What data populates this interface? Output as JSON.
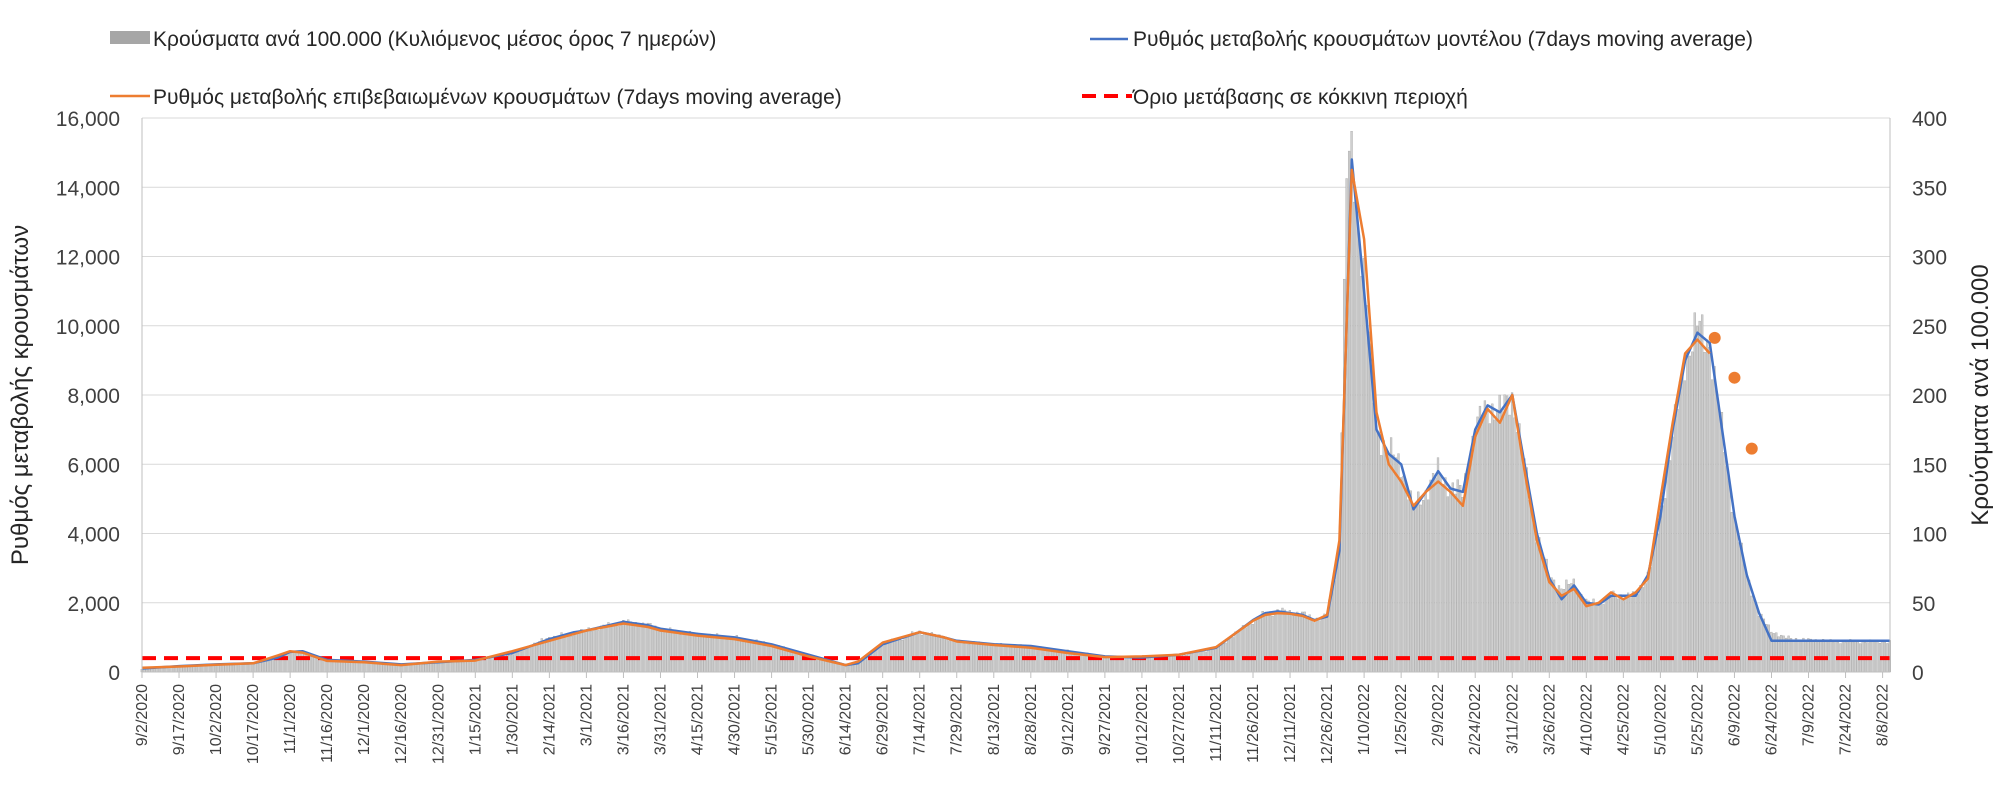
{
  "chart_data": {
    "type": "bar+line",
    "legend": {
      "bars": "Κρούσματα ανά 100.000  (Κυλιόμενος μέσος όρος 7 ημερών)",
      "model": "Ρυθμός μεταβολής κρουσμάτων μοντέλου (7days moving average)",
      "confirmed": "Ρυθμός μεταβολής επιβεβαιωμένων κρουσμάτων (7days moving average)",
      "threshold": "Όριο μετάβασης σε κόκκινη περιοχή"
    },
    "y_left": {
      "label": "Ρυθμός μεταβολής κρουσμάτων",
      "range": [
        0,
        16000
      ],
      "ticks": [
        "0",
        "2,000",
        "4,000",
        "6,000",
        "8,000",
        "10,000",
        "12,000",
        "14,000",
        "16,000"
      ]
    },
    "y_right": {
      "label": "Κρούσματα ανά 100.000",
      "range": [
        0,
        400
      ],
      "ticks": [
        "0",
        "50",
        "100",
        "150",
        "200",
        "250",
        "300",
        "350",
        "400"
      ]
    },
    "x_range_days": [
      0,
      708
    ],
    "x_ticks": [
      "9/2/2020",
      "9/17/2020",
      "10/2/2020",
      "10/17/2020",
      "11/1/2020",
      "11/16/2020",
      "12/1/2020",
      "12/16/2020",
      "12/31/2020",
      "1/15/2021",
      "1/30/2021",
      "2/14/2021",
      "3/1/2021",
      "3/16/2021",
      "3/31/2021",
      "4/15/2021",
      "4/30/2021",
      "5/15/2021",
      "5/30/2021",
      "6/14/2021",
      "6/29/2021",
      "7/14/2021",
      "7/29/2021",
      "8/13/2021",
      "8/28/2021",
      "9/12/2021",
      "9/27/2021",
      "10/12/2021",
      "10/27/2021",
      "11/11/2021",
      "11/26/2021",
      "12/11/2021",
      "12/26/2021",
      "1/10/2022",
      "1/25/2022",
      "2/9/2022",
      "2/24/2022",
      "3/11/2022",
      "3/26/2022",
      "4/10/2022",
      "4/25/2022",
      "5/10/2022",
      "5/25/2022",
      "6/9/2022",
      "6/24/2022",
      "7/9/2022",
      "7/24/2022",
      "8/8/2022"
    ],
    "threshold_value": 400,
    "model_series": {
      "x": [
        0,
        15,
        30,
        45,
        55,
        60,
        65,
        75,
        90,
        105,
        120,
        135,
        150,
        165,
        175,
        180,
        195,
        205,
        210,
        225,
        240,
        255,
        270,
        285,
        290,
        300,
        315,
        325,
        330,
        345,
        360,
        375,
        390,
        405,
        420,
        435,
        450,
        455,
        460,
        465,
        470,
        475,
        480,
        485,
        490,
        495,
        500,
        505,
        510,
        515,
        520,
        525,
        530,
        535,
        540,
        545,
        550,
        555,
        560,
        565,
        570,
        575,
        580,
        585,
        590,
        595,
        600,
        605,
        610,
        615,
        620,
        625,
        630,
        635,
        640,
        645,
        650,
        655,
        660,
        665,
        670,
        675,
        680,
        685,
        690,
        695,
        700,
        705,
        708
      ],
      "y": [
        100,
        170,
        220,
        250,
        420,
        580,
        600,
        350,
        300,
        220,
        280,
        350,
        550,
        950,
        1150,
        1200,
        1450,
        1350,
        1250,
        1100,
        1000,
        800,
        500,
        200,
        250,
        800,
        1150,
        1000,
        900,
        800,
        750,
        600,
        450,
        420,
        500,
        700,
        1500,
        1700,
        1750,
        1700,
        1650,
        1500,
        1600,
        3500,
        14800,
        11000,
        7000,
        6300,
        6000,
        4700,
        5200,
        5800,
        5300,
        5200,
        7000,
        7700,
        7500,
        8000,
        6000,
        4000,
        2700,
        2100,
        2500,
        2000,
        1950,
        2200,
        2200,
        2200,
        2800,
        4500,
        7000,
        9000,
        9800,
        9500,
        7000,
        4500,
        2800,
        1700,
        900,
        900,
        900,
        900,
        900,
        900,
        900,
        900,
        900,
        900,
        900
      ]
    },
    "confirmed_series": {
      "x": [
        0,
        15,
        30,
        45,
        55,
        60,
        65,
        75,
        90,
        105,
        120,
        135,
        150,
        165,
        175,
        180,
        195,
        205,
        210,
        225,
        240,
        255,
        270,
        285,
        290,
        300,
        315,
        325,
        330,
        345,
        360,
        375,
        390,
        405,
        420,
        435,
        450,
        455,
        460,
        465,
        470,
        475,
        480,
        485,
        490,
        495,
        500,
        505,
        510,
        515,
        520,
        525,
        530,
        535,
        540,
        545,
        550,
        555,
        560,
        565,
        570,
        575,
        580,
        585,
        590,
        595,
        600,
        605,
        610,
        615,
        620,
        625,
        630,
        635
      ],
      "y": [
        120,
        160,
        210,
        250,
        480,
        600,
        560,
        320,
        280,
        200,
        300,
        330,
        600,
        900,
        1100,
        1200,
        1400,
        1300,
        1200,
        1050,
        950,
        750,
        450,
        200,
        300,
        850,
        1150,
        1000,
        880,
        780,
        700,
        550,
        430,
        450,
        500,
        720,
        1480,
        1650,
        1700,
        1680,
        1620,
        1480,
        1650,
        3800,
        14500,
        12500,
        7500,
        6000,
        5500,
        4800,
        5200,
        5500,
        5200,
        4800,
        6800,
        7600,
        7200,
        8000,
        5800,
        3800,
        2600,
        2200,
        2400,
        1900,
        2000,
        2300,
        2100,
        2300,
        2700,
        5000,
        7200,
        9200,
        9600,
        9200
      ]
    },
    "confirmed_points": {
      "x": [
        637,
        645,
        652
      ],
      "y": [
        9650,
        8500,
        6450
      ]
    },
    "bars_per100k": {
      "x": [
        0,
        15,
        30,
        45,
        55,
        60,
        65,
        75,
        90,
        105,
        120,
        135,
        150,
        165,
        175,
        180,
        195,
        205,
        210,
        225,
        240,
        255,
        270,
        285,
        290,
        300,
        315,
        325,
        330,
        345,
        360,
        375,
        390,
        405,
        420,
        435,
        450,
        455,
        460,
        465,
        470,
        475,
        480,
        485,
        488,
        490,
        495,
        500,
        505,
        510,
        515,
        520,
        525,
        530,
        535,
        540,
        545,
        550,
        555,
        560,
        565,
        570,
        575,
        580,
        585,
        590,
        595,
        600,
        605,
        610,
        615,
        620,
        625,
        630,
        635,
        640,
        645,
        650,
        655,
        660,
        665,
        670,
        675,
        680,
        685,
        690,
        695,
        700,
        705,
        708
      ],
      "y": [
        2,
        4,
        5,
        6,
        10,
        15,
        14,
        8,
        7,
        5,
        7,
        8,
        13,
        25,
        28,
        30,
        36,
        34,
        31,
        27,
        25,
        20,
        12,
        5,
        6,
        20,
        29,
        25,
        22,
        20,
        18,
        15,
        11,
        10,
        12,
        17,
        37,
        42,
        44,
        43,
        42,
        38,
        40,
        90,
        360,
        370,
        290,
        175,
        160,
        150,
        118,
        130,
        145,
        133,
        130,
        175,
        192,
        188,
        200,
        150,
        100,
        70,
        60,
        65,
        50,
        50,
        55,
        55,
        55,
        70,
        110,
        170,
        225,
        250,
        238,
        175,
        112,
        70,
        42,
        30,
        25,
        24,
        23,
        23,
        22,
        22,
        22,
        22,
        22,
        22
      ]
    }
  }
}
